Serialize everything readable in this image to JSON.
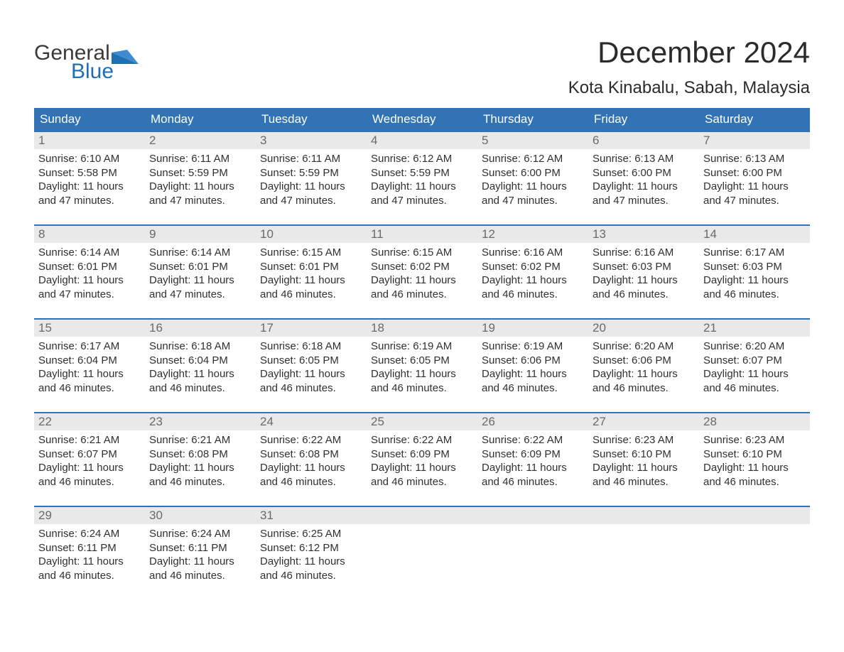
{
  "brand": {
    "line1": "General",
    "line2": "Blue"
  },
  "title": "December 2024",
  "location": "Kota Kinabalu, Sabah, Malaysia",
  "colors": {
    "header_bg": "#3173b5",
    "header_text": "#ffffff",
    "daynum_bg": "#e9e9e9",
    "daynum_text": "#6a6a6a",
    "body_text": "#303030",
    "brand_gray": "#3a3a3a",
    "brand_blue": "#1f6fb2"
  },
  "day_names": [
    "Sunday",
    "Monday",
    "Tuesday",
    "Wednesday",
    "Thursday",
    "Friday",
    "Saturday"
  ],
  "weeks": [
    [
      {
        "num": "1",
        "sunrise": "Sunrise: 6:10 AM",
        "sunset": "Sunset: 5:58 PM",
        "d1": "Daylight: 11 hours",
        "d2": "and 47 minutes."
      },
      {
        "num": "2",
        "sunrise": "Sunrise: 6:11 AM",
        "sunset": "Sunset: 5:59 PM",
        "d1": "Daylight: 11 hours",
        "d2": "and 47 minutes."
      },
      {
        "num": "3",
        "sunrise": "Sunrise: 6:11 AM",
        "sunset": "Sunset: 5:59 PM",
        "d1": "Daylight: 11 hours",
        "d2": "and 47 minutes."
      },
      {
        "num": "4",
        "sunrise": "Sunrise: 6:12 AM",
        "sunset": "Sunset: 5:59 PM",
        "d1": "Daylight: 11 hours",
        "d2": "and 47 minutes."
      },
      {
        "num": "5",
        "sunrise": "Sunrise: 6:12 AM",
        "sunset": "Sunset: 6:00 PM",
        "d1": "Daylight: 11 hours",
        "d2": "and 47 minutes."
      },
      {
        "num": "6",
        "sunrise": "Sunrise: 6:13 AM",
        "sunset": "Sunset: 6:00 PM",
        "d1": "Daylight: 11 hours",
        "d2": "and 47 minutes."
      },
      {
        "num": "7",
        "sunrise": "Sunrise: 6:13 AM",
        "sunset": "Sunset: 6:00 PM",
        "d1": "Daylight: 11 hours",
        "d2": "and 47 minutes."
      }
    ],
    [
      {
        "num": "8",
        "sunrise": "Sunrise: 6:14 AM",
        "sunset": "Sunset: 6:01 PM",
        "d1": "Daylight: 11 hours",
        "d2": "and 47 minutes."
      },
      {
        "num": "9",
        "sunrise": "Sunrise: 6:14 AM",
        "sunset": "Sunset: 6:01 PM",
        "d1": "Daylight: 11 hours",
        "d2": "and 47 minutes."
      },
      {
        "num": "10",
        "sunrise": "Sunrise: 6:15 AM",
        "sunset": "Sunset: 6:01 PM",
        "d1": "Daylight: 11 hours",
        "d2": "and 46 minutes."
      },
      {
        "num": "11",
        "sunrise": "Sunrise: 6:15 AM",
        "sunset": "Sunset: 6:02 PM",
        "d1": "Daylight: 11 hours",
        "d2": "and 46 minutes."
      },
      {
        "num": "12",
        "sunrise": "Sunrise: 6:16 AM",
        "sunset": "Sunset: 6:02 PM",
        "d1": "Daylight: 11 hours",
        "d2": "and 46 minutes."
      },
      {
        "num": "13",
        "sunrise": "Sunrise: 6:16 AM",
        "sunset": "Sunset: 6:03 PM",
        "d1": "Daylight: 11 hours",
        "d2": "and 46 minutes."
      },
      {
        "num": "14",
        "sunrise": "Sunrise: 6:17 AM",
        "sunset": "Sunset: 6:03 PM",
        "d1": "Daylight: 11 hours",
        "d2": "and 46 minutes."
      }
    ],
    [
      {
        "num": "15",
        "sunrise": "Sunrise: 6:17 AM",
        "sunset": "Sunset: 6:04 PM",
        "d1": "Daylight: 11 hours",
        "d2": "and 46 minutes."
      },
      {
        "num": "16",
        "sunrise": "Sunrise: 6:18 AM",
        "sunset": "Sunset: 6:04 PM",
        "d1": "Daylight: 11 hours",
        "d2": "and 46 minutes."
      },
      {
        "num": "17",
        "sunrise": "Sunrise: 6:18 AM",
        "sunset": "Sunset: 6:05 PM",
        "d1": "Daylight: 11 hours",
        "d2": "and 46 minutes."
      },
      {
        "num": "18",
        "sunrise": "Sunrise: 6:19 AM",
        "sunset": "Sunset: 6:05 PM",
        "d1": "Daylight: 11 hours",
        "d2": "and 46 minutes."
      },
      {
        "num": "19",
        "sunrise": "Sunrise: 6:19 AM",
        "sunset": "Sunset: 6:06 PM",
        "d1": "Daylight: 11 hours",
        "d2": "and 46 minutes."
      },
      {
        "num": "20",
        "sunrise": "Sunrise: 6:20 AM",
        "sunset": "Sunset: 6:06 PM",
        "d1": "Daylight: 11 hours",
        "d2": "and 46 minutes."
      },
      {
        "num": "21",
        "sunrise": "Sunrise: 6:20 AM",
        "sunset": "Sunset: 6:07 PM",
        "d1": "Daylight: 11 hours",
        "d2": "and 46 minutes."
      }
    ],
    [
      {
        "num": "22",
        "sunrise": "Sunrise: 6:21 AM",
        "sunset": "Sunset: 6:07 PM",
        "d1": "Daylight: 11 hours",
        "d2": "and 46 minutes."
      },
      {
        "num": "23",
        "sunrise": "Sunrise: 6:21 AM",
        "sunset": "Sunset: 6:08 PM",
        "d1": "Daylight: 11 hours",
        "d2": "and 46 minutes."
      },
      {
        "num": "24",
        "sunrise": "Sunrise: 6:22 AM",
        "sunset": "Sunset: 6:08 PM",
        "d1": "Daylight: 11 hours",
        "d2": "and 46 minutes."
      },
      {
        "num": "25",
        "sunrise": "Sunrise: 6:22 AM",
        "sunset": "Sunset: 6:09 PM",
        "d1": "Daylight: 11 hours",
        "d2": "and 46 minutes."
      },
      {
        "num": "26",
        "sunrise": "Sunrise: 6:22 AM",
        "sunset": "Sunset: 6:09 PM",
        "d1": "Daylight: 11 hours",
        "d2": "and 46 minutes."
      },
      {
        "num": "27",
        "sunrise": "Sunrise: 6:23 AM",
        "sunset": "Sunset: 6:10 PM",
        "d1": "Daylight: 11 hours",
        "d2": "and 46 minutes."
      },
      {
        "num": "28",
        "sunrise": "Sunrise: 6:23 AM",
        "sunset": "Sunset: 6:10 PM",
        "d1": "Daylight: 11 hours",
        "d2": "and 46 minutes."
      }
    ],
    [
      {
        "num": "29",
        "sunrise": "Sunrise: 6:24 AM",
        "sunset": "Sunset: 6:11 PM",
        "d1": "Daylight: 11 hours",
        "d2": "and 46 minutes."
      },
      {
        "num": "30",
        "sunrise": "Sunrise: 6:24 AM",
        "sunset": "Sunset: 6:11 PM",
        "d1": "Daylight: 11 hours",
        "d2": "and 46 minutes."
      },
      {
        "num": "31",
        "sunrise": "Sunrise: 6:25 AM",
        "sunset": "Sunset: 6:12 PM",
        "d1": "Daylight: 11 hours",
        "d2": "and 46 minutes."
      },
      {
        "num": "",
        "sunrise": "",
        "sunset": "",
        "d1": "",
        "d2": ""
      },
      {
        "num": "",
        "sunrise": "",
        "sunset": "",
        "d1": "",
        "d2": ""
      },
      {
        "num": "",
        "sunrise": "",
        "sunset": "",
        "d1": "",
        "d2": ""
      },
      {
        "num": "",
        "sunrise": "",
        "sunset": "",
        "d1": "",
        "d2": ""
      }
    ]
  ]
}
